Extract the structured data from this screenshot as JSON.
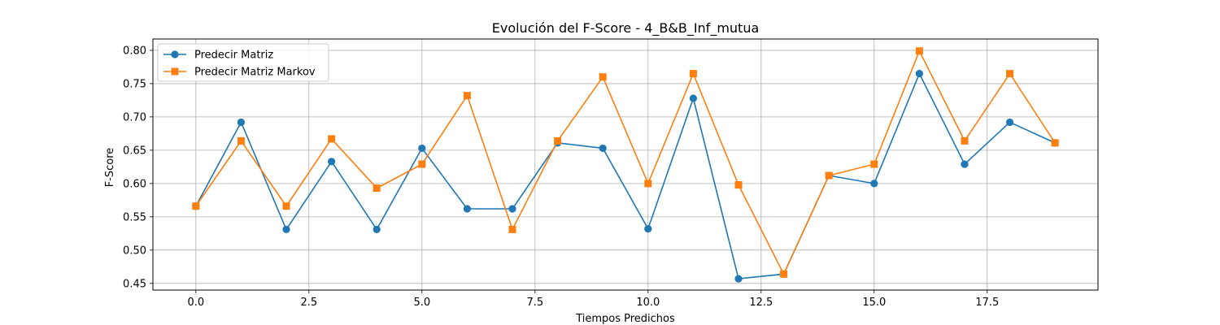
{
  "chart_data": {
    "type": "line",
    "title": "Evolución del F-Score - 4_B&B_Inf_mutua",
    "xlabel": "Tiempos Predichos",
    "ylabel": "F-Score",
    "xlim": [
      -0.95,
      19.95
    ],
    "ylim": [
      0.44,
      0.817
    ],
    "xticks": [
      0,
      2.5,
      5,
      7.5,
      10,
      12.5,
      15,
      17.5
    ],
    "xtick_labels": [
      "0.0",
      "2.5",
      "5.0",
      "7.5",
      "10.0",
      "12.5",
      "15.0",
      "17.5"
    ],
    "yticks": [
      0.45,
      0.5,
      0.55,
      0.6,
      0.65,
      0.7,
      0.75,
      0.8
    ],
    "ytick_labels": [
      "0.45",
      "0.50",
      "0.55",
      "0.60",
      "0.65",
      "0.70",
      "0.75",
      "0.80"
    ],
    "grid": true,
    "legend_position": "top-left",
    "x": [
      0,
      1,
      2,
      3,
      4,
      5,
      6,
      7,
      8,
      9,
      10,
      11,
      12,
      13,
      14,
      15,
      16,
      17,
      18,
      19
    ],
    "series": [
      {
        "name": "Predecir Matriz",
        "color": "#1f77b4",
        "marker": "circle",
        "values": [
          0.566,
          0.692,
          0.531,
          0.633,
          0.531,
          0.653,
          0.562,
          0.562,
          0.661,
          0.653,
          0.532,
          0.728,
          0.457,
          0.464,
          0.612,
          0.6,
          0.765,
          0.629,
          0.692,
          0.661
        ]
      },
      {
        "name": "Predecir Matriz Markov",
        "color": "#ff7f0e",
        "marker": "square",
        "values": [
          0.566,
          0.664,
          0.566,
          0.667,
          0.593,
          0.629,
          0.732,
          0.531,
          0.664,
          0.76,
          0.6,
          0.765,
          0.598,
          0.464,
          0.612,
          0.629,
          0.799,
          0.664,
          0.765,
          0.661
        ]
      }
    ]
  }
}
